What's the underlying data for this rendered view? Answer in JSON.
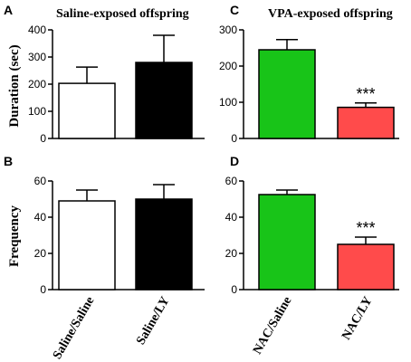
{
  "colors": {
    "white_bar": "#ffffff",
    "black_bar": "#000000",
    "green_bar": "#18c418",
    "red_bar": "#ff4b4b",
    "axis": "#000000"
  },
  "row_labels": {
    "duration": "Duration (sec)",
    "frequency": "Frequency"
  },
  "categories": {
    "left": [
      "Saline/Saline",
      "Saline/LY"
    ],
    "right": [
      "NAC/Saline",
      "NAC/LY"
    ]
  },
  "chart_data": [
    {
      "panel": "A",
      "type": "bar",
      "title": "Saline-exposed offspring",
      "ylabel": "Duration (sec)",
      "ylim": [
        0,
        400
      ],
      "yticks": [
        0,
        100,
        200,
        300,
        400
      ],
      "categories": [
        "Saline/Saline",
        "Saline/LY"
      ],
      "values": [
        203,
        280
      ],
      "errors": [
        60,
        100
      ],
      "colors": [
        "#ffffff",
        "#000000"
      ],
      "annotations": []
    },
    {
      "panel": "C",
      "type": "bar",
      "title": "VPA-exposed offspring",
      "ylabel": "",
      "ylim": [
        0,
        300
      ],
      "yticks": [
        0,
        100,
        200,
        300
      ],
      "categories": [
        "NAC/Saline",
        "NAC/LY"
      ],
      "values": [
        245,
        86
      ],
      "errors": [
        28,
        12
      ],
      "colors": [
        "#18c418",
        "#ff4b4b"
      ],
      "annotations": [
        "",
        "***"
      ]
    },
    {
      "panel": "B",
      "type": "bar",
      "title": "",
      "ylabel": "Frequency",
      "ylim": [
        0,
        60
      ],
      "yticks": [
        0,
        20,
        40,
        60
      ],
      "categories": [
        "Saline/Saline",
        "Saline/LY"
      ],
      "values": [
        49,
        50
      ],
      "errors": [
        6,
        8
      ],
      "colors": [
        "#ffffff",
        "#000000"
      ],
      "annotations": []
    },
    {
      "panel": "D",
      "type": "bar",
      "title": "",
      "ylabel": "",
      "ylim": [
        0,
        60
      ],
      "yticks": [
        0,
        20,
        40,
        60
      ],
      "categories": [
        "NAC/Saline",
        "NAC/LY"
      ],
      "values": [
        52.5,
        25
      ],
      "errors": [
        2.5,
        4
      ],
      "colors": [
        "#18c418",
        "#ff4b4b"
      ],
      "annotations": [
        "",
        "***"
      ]
    }
  ]
}
